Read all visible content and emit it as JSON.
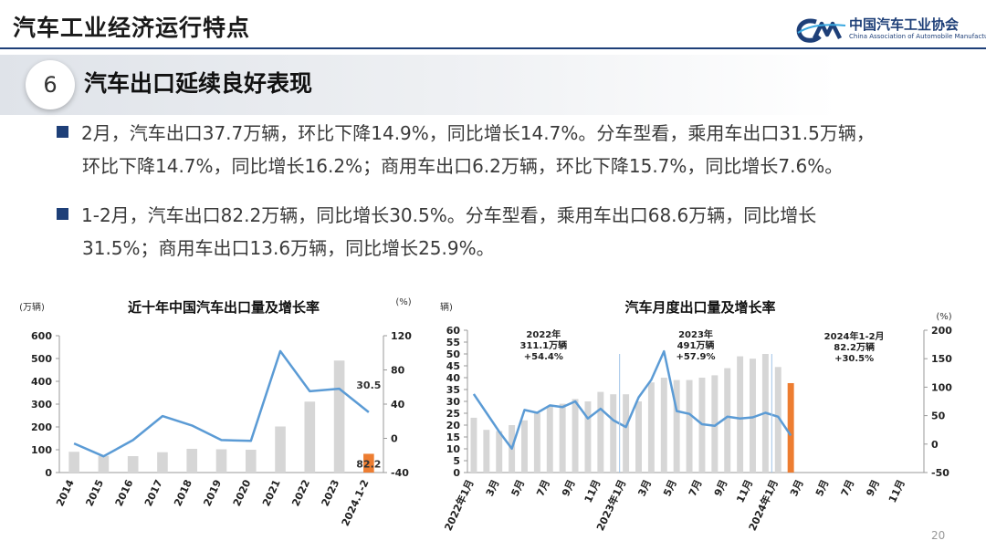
{
  "header": {
    "title": "汽车工业经济运行特点",
    "logo_name": "中国汽车工业协会",
    "logo_en": "China Association of Automobile Manufacturers"
  },
  "section": {
    "number": "6",
    "title": "汽车出口延续良好表现"
  },
  "bullets": [
    {
      "line1": "2月，汽车出口37.7万辆，环比下降14.9%，同比增长14.7%。分车型看，乘用车出口31.5万辆，",
      "line2": "环比下降14.7%，同比增长16.2%；商用车出口6.2万辆，环比下降15.7%，同比增长7.6%。"
    },
    {
      "line1": "1-2月，汽车出口82.2万辆，同比增长30.5%。分车型看，乘用车出口68.6万辆，同比增长",
      "line2": "31.5%；商用车出口13.6万辆，同比增长25.9%。"
    }
  ],
  "page_number": "20",
  "colors": {
    "bar": "#d6d6d6",
    "bar_highlight": "#ed7d31",
    "line": "#5b9bd5",
    "brand": "#1e3f78"
  },
  "chart_data": [
    {
      "type": "bar",
      "title": "近十年中国汽车出口量及增长率",
      "ylabel": "(万辆)",
      "y2label": "(%)",
      "ylim": [
        0,
        600
      ],
      "y2lim": [
        -40,
        120
      ],
      "yticks": [
        0,
        100,
        200,
        300,
        400,
        500,
        600
      ],
      "y2ticks": [
        -40,
        0,
        40,
        80,
        120
      ],
      "categories": [
        "2014",
        "2015",
        "2016",
        "2017",
        "2018",
        "2019",
        "2020",
        "2021",
        "2022",
        "2023",
        "2024.1-2"
      ],
      "series": [
        {
          "name": "出口量",
          "kind": "bar",
          "axis": "left",
          "values": [
            91,
            73,
            72,
            89,
            104,
            102,
            100,
            202,
            311,
            491,
            82.2
          ]
        },
        {
          "name": "增长率",
          "kind": "line",
          "axis": "right",
          "values": [
            -6,
            -21,
            -2,
            26,
            15,
            -2,
            -3,
            102,
            55,
            58,
            30.5
          ]
        }
      ],
      "data_labels": [
        {
          "category": "2024.1-2",
          "series": "增长率",
          "text": "30.5"
        },
        {
          "category": "2024.1-2",
          "series": "出口量",
          "text": "82.2"
        }
      ]
    },
    {
      "type": "bar",
      "title": "汽车月度出口量及增长率",
      "ylabel": "(万辆)",
      "y2label": "(%)",
      "ylim": [
        0,
        60
      ],
      "y2lim": [
        -50,
        200
      ],
      "yticks": [
        0,
        5,
        10,
        15,
        20,
        25,
        30,
        35,
        40,
        45,
        50,
        55,
        60
      ],
      "y2ticks": [
        -50,
        0,
        50,
        100,
        150,
        200
      ],
      "categories": [
        "2022年1月",
        "",
        "3月",
        "",
        "5月",
        "",
        "7月",
        "",
        "9月",
        "",
        "11月",
        "",
        "2023年1月",
        "",
        "3月",
        "",
        "5月",
        "",
        "7月",
        "",
        "9月",
        "",
        "11月",
        "",
        "2024年1月",
        "",
        "3月",
        "",
        "5月",
        "",
        "7月",
        "",
        "9月",
        "",
        "11月",
        ""
      ],
      "series": [
        {
          "name": "出口量",
          "kind": "bar",
          "axis": "left",
          "values": [
            23.1,
            18.0,
            17.5,
            20.0,
            22.0,
            25.0,
            28.0,
            29.0,
            31.0,
            30.0,
            34.0,
            33.0,
            33.0,
            30.0,
            38.0,
            40.0,
            39.0,
            39.0,
            40.0,
            41.0,
            44.0,
            49.0,
            48.0,
            50.0,
            44.5,
            37.7,
            null,
            null,
            null,
            null,
            null,
            null,
            null,
            null,
            null,
            null
          ]
        },
        {
          "name": "增长率",
          "kind": "line",
          "axis": "right",
          "values": [
            88,
            55,
            22,
            -8,
            60,
            55,
            68,
            65,
            75,
            45,
            62,
            42,
            30,
            82,
            113,
            163,
            58,
            53,
            35,
            32,
            48,
            45,
            47,
            55,
            48,
            15,
            null,
            null,
            null,
            null,
            null,
            null,
            null,
            null,
            null,
            null
          ]
        }
      ],
      "dividers_after": [
        "2022年12月",
        "2023年12月"
      ],
      "annotations": [
        {
          "period": "2022年",
          "total": "311.1万辆",
          "growth": "+54.4%"
        },
        {
          "period": "2023年",
          "total": "491万辆",
          "growth": "+57.9%"
        },
        {
          "period": "2024年1-2月",
          "total": "82.2万辆",
          "growth": "+30.5%"
        }
      ]
    }
  ]
}
